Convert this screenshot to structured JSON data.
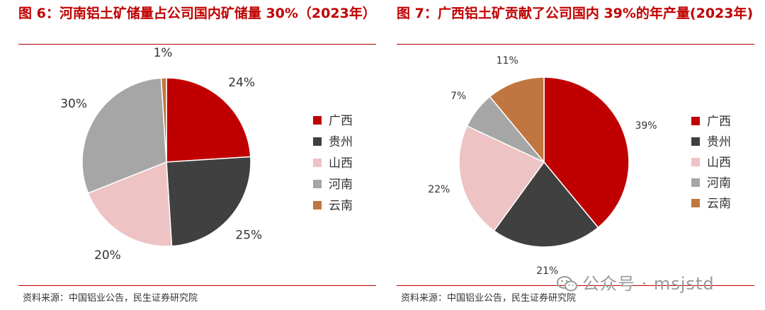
{
  "colors": {
    "guangxi": "#c00000",
    "guizhou": "#404040",
    "shanxi": "#edc3c3",
    "henan": "#a6a6a6",
    "yunnan": "#c0763e",
    "title": "#c00000"
  },
  "left": {
    "title": "图 6：河南铝土矿储量占公司国内矿储量 30%（2023年）",
    "source": "资料来源：中国铝业公告，民生证券研究院"
  },
  "right": {
    "title": "图 7：广西铝土矿贡献了公司国内 39%的年产量(2023年)",
    "source": "资料来源：中国铝业公告，民生证券研究院"
  },
  "watermark": "公众号 · msjstd",
  "chart_data": [
    {
      "type": "pie",
      "title": "图 6：河南铝土矿储量占公司国内矿储量 30%（2023年）",
      "categories": [
        "广西",
        "贵州",
        "山西",
        "河南",
        "云南"
      ],
      "values": [
        24,
        25,
        20,
        30,
        1
      ],
      "labels": [
        "24%",
        "25%",
        "20%",
        "30%",
        "1%"
      ],
      "legend_position": "right"
    },
    {
      "type": "pie",
      "title": "图 7：广西铝土矿贡献了公司国内 39%的年产量(2023年)",
      "categories": [
        "广西",
        "贵州",
        "山西",
        "河南",
        "云南"
      ],
      "values": [
        39,
        21,
        22,
        7,
        11
      ],
      "labels": [
        "39%",
        "21%",
        "22%",
        "7%",
        "11%"
      ],
      "legend_position": "right"
    }
  ]
}
